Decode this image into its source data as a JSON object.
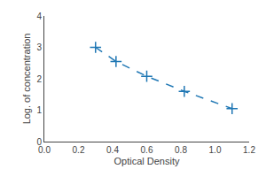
{
  "chart_data": {
    "type": "line",
    "x": [
      0.3,
      0.42,
      0.6,
      0.82,
      1.1
    ],
    "values": [
      3.0,
      2.55,
      2.08,
      1.6,
      1.05
    ],
    "xlabel": "Optical Density",
    "ylabel": "Log. of concentration",
    "xlim": [
      0,
      1.2
    ],
    "ylim": [
      0,
      4
    ],
    "xticks": [
      {
        "value": 0,
        "label": "0.0"
      },
      0.2,
      0.4,
      0.6,
      0.8,
      {
        "value": 1.0,
        "label": "1.0"
      },
      1.2
    ],
    "yticks": [
      0,
      1,
      2,
      3,
      4
    ],
    "marker": "+",
    "line_style": "dashed",
    "grid": false
  }
}
